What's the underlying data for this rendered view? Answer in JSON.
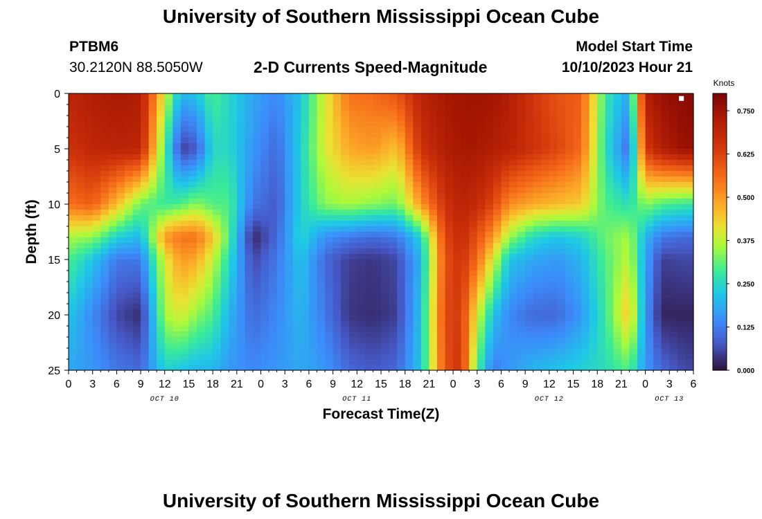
{
  "header": {
    "title": "University of Southern Mississippi Ocean Cube",
    "title_repeat": "University of Southern Mississippi Ocean Cube",
    "station_id": "PTBM6",
    "station_coords": "30.2120N  88.5050W",
    "plot_title": "2-D Currents Speed-Magnitude",
    "model_start_label": "Model Start Time",
    "model_start_value": "10/10/2023 Hour 21"
  },
  "chart_data": {
    "type": "heatmap",
    "title": "2-D Currents Speed-Magnitude",
    "xlabel": "Forecast Time(Z)",
    "ylabel": "Depth (ft)",
    "y_range": [
      0,
      25
    ],
    "y_ticks": [
      0,
      5,
      10,
      15,
      20,
      25
    ],
    "y_tick_labels": [
      "0",
      "5",
      "10",
      "15",
      "20",
      "25"
    ],
    "x_range": [
      0,
      78
    ],
    "x_ticks": [
      0,
      3,
      6,
      9,
      12,
      15,
      18,
      21,
      24,
      27,
      30,
      33,
      36,
      39,
      42,
      45,
      48,
      51,
      54,
      57,
      60,
      63,
      66,
      69,
      72,
      75,
      78
    ],
    "x_tick_labels": [
      "0",
      "3",
      "6",
      "9",
      "12",
      "15",
      "18",
      "21",
      "0",
      "3",
      "6",
      "9",
      "12",
      "15",
      "18",
      "21",
      "0",
      "3",
      "6",
      "9",
      "12",
      "15",
      "18",
      "21",
      "0",
      "3",
      "6"
    ],
    "date_labels": [
      {
        "text": "OCT 10",
        "hour": 12
      },
      {
        "text": "OCT 11",
        "hour": 36
      },
      {
        "text": "OCT 12",
        "hour": 60
      },
      {
        "text": "OCT 13",
        "hour": 75
      }
    ],
    "colorbar": {
      "label": "Knots",
      "range": [
        0,
        0.8
      ],
      "ticks": [
        0,
        0.125,
        0.25,
        0.375,
        0.5,
        0.625,
        0.75
      ],
      "tick_labels": [
        "0.000",
        "0.125",
        "0.250",
        "0.375",
        "0.500",
        "0.625",
        "0.750"
      ]
    },
    "depths_ft": [
      0,
      5,
      10,
      13,
      15,
      20,
      25
    ],
    "hours": [
      0,
      3,
      6,
      9,
      12,
      14,
      16,
      18,
      20,
      23,
      26,
      29,
      32,
      35,
      38,
      41,
      44,
      47,
      49,
      51,
      53,
      55,
      58,
      61,
      64,
      67,
      70,
      72,
      74,
      77
    ],
    "speed_knots": [
      [
        0.7,
        0.72,
        0.74,
        0.72,
        0.4,
        0.2,
        0.22,
        0.3,
        0.25,
        0.18,
        0.14,
        0.22,
        0.4,
        0.55,
        0.56,
        0.6,
        0.7,
        0.74,
        0.75,
        0.75,
        0.75,
        0.72,
        0.65,
        0.6,
        0.58,
        0.28,
        0.18,
        0.72,
        0.76,
        0.78
      ],
      [
        0.66,
        0.69,
        0.7,
        0.7,
        0.3,
        0.05,
        0.08,
        0.25,
        0.25,
        0.16,
        0.1,
        0.24,
        0.4,
        0.48,
        0.5,
        0.45,
        0.66,
        0.72,
        0.74,
        0.74,
        0.72,
        0.7,
        0.66,
        0.62,
        0.56,
        0.26,
        0.1,
        0.64,
        0.72,
        0.76
      ],
      [
        0.55,
        0.58,
        0.46,
        0.32,
        0.28,
        0.3,
        0.34,
        0.3,
        0.3,
        0.12,
        0.08,
        0.24,
        0.34,
        0.36,
        0.34,
        0.32,
        0.5,
        0.66,
        0.7,
        0.68,
        0.62,
        0.52,
        0.48,
        0.46,
        0.44,
        0.3,
        0.26,
        0.34,
        0.3,
        0.28
      ],
      [
        0.36,
        0.34,
        0.24,
        0.2,
        0.5,
        0.55,
        0.55,
        0.45,
        0.3,
        0.02,
        0.1,
        0.25,
        0.15,
        0.12,
        0.1,
        0.12,
        0.24,
        0.62,
        0.68,
        0.6,
        0.5,
        0.35,
        0.25,
        0.22,
        0.24,
        0.32,
        0.36,
        0.2,
        0.12,
        0.1
      ],
      [
        0.3,
        0.22,
        0.12,
        0.12,
        0.4,
        0.5,
        0.48,
        0.38,
        0.26,
        0.06,
        0.12,
        0.22,
        0.1,
        0.05,
        0.04,
        0.06,
        0.2,
        0.6,
        0.66,
        0.56,
        0.4,
        0.22,
        0.18,
        0.16,
        0.2,
        0.3,
        0.38,
        0.18,
        0.05,
        0.06
      ],
      [
        0.22,
        0.14,
        0.06,
        0.03,
        0.36,
        0.4,
        0.34,
        0.3,
        0.2,
        0.1,
        0.14,
        0.2,
        0.12,
        0.04,
        0.03,
        0.05,
        0.22,
        0.62,
        0.64,
        0.4,
        0.22,
        0.14,
        0.1,
        0.1,
        0.16,
        0.28,
        0.46,
        0.16,
        0.02,
        0.02
      ],
      [
        0.18,
        0.16,
        0.12,
        0.1,
        0.24,
        0.22,
        0.2,
        0.2,
        0.16,
        0.14,
        0.16,
        0.18,
        0.16,
        0.1,
        0.08,
        0.1,
        0.22,
        0.6,
        0.66,
        0.3,
        0.12,
        0.16,
        0.2,
        0.22,
        0.24,
        0.26,
        0.3,
        0.16,
        0.1,
        0.06
      ]
    ],
    "markers": [
      {
        "hour": 76.5,
        "depth_ft": 0.3,
        "color": "#ffffff"
      }
    ]
  }
}
